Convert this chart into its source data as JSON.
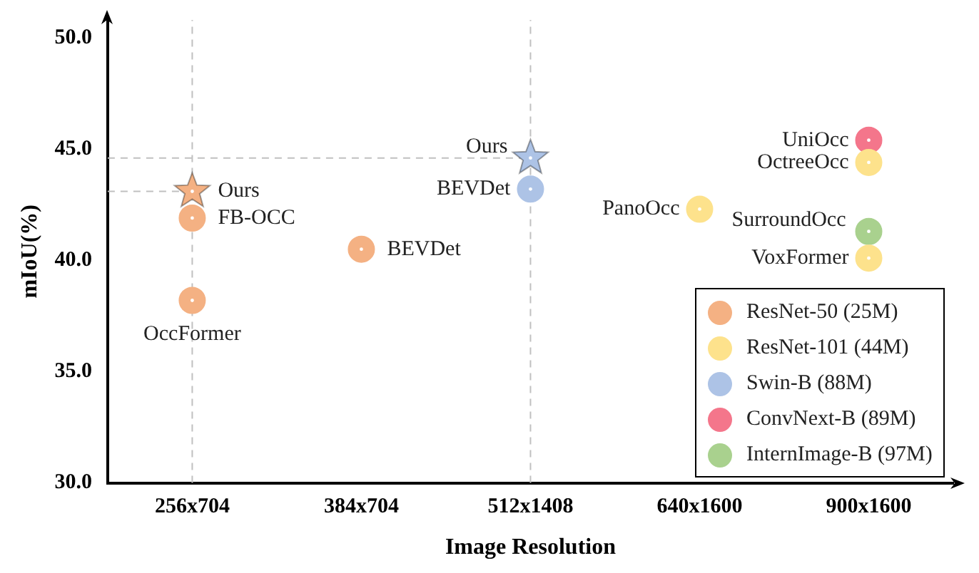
{
  "chart_data": {
    "type": "scatter",
    "xlabel": "Image Resolution",
    "ylabel": "mIoU(%)",
    "categories": [
      "256x704",
      "384x704",
      "512x1408",
      "640x1600",
      "900x1600"
    ],
    "ylim": [
      30,
      50.8
    ],
    "yticks": [
      {
        "value": 30,
        "label": "30.0"
      },
      {
        "value": 35,
        "label": "35.0"
      },
      {
        "value": 40,
        "label": "40.0"
      },
      {
        "value": 45,
        "label": "45.0"
      },
      {
        "value": 50,
        "label": "50.0"
      }
    ],
    "grid": false,
    "legend": "bottom right",
    "marker": "circle",
    "series": [
      {
        "name": "ResNet-50 (25M)",
        "color": "#f4b183",
        "x": [
          "256x704",
          "256x704",
          "384x704"
        ],
        "values": [
          41.9,
          38.2,
          40.5
        ]
      },
      {
        "name": "ResNet-101 (44M)",
        "color": "#fde28c",
        "x": [
          "640x1600",
          "900x1600",
          "900x1600"
        ],
        "values": [
          42.3,
          44.4,
          40.1
        ]
      },
      {
        "name": "Swin-B (88M)",
        "color": "#adc3e6",
        "x": [
          "512x1408"
        ],
        "values": [
          43.2
        ]
      },
      {
        "name": "ConvNext-B (89M)",
        "color": "#f4768b",
        "x": [
          "900x1600"
        ],
        "values": [
          45.4
        ]
      },
      {
        "name": "InternImage-B (97M)",
        "color": "#a9d18e",
        "x": [
          "900x1600"
        ],
        "values": [
          41.3
        ]
      },
      {
        "color": "#f4b183",
        "marker": "star",
        "x": [
          "256x704"
        ],
        "values": [
          43.1
        ]
      },
      {
        "color": "#adc3e6",
        "marker": "star",
        "x": [
          "512x1408"
        ],
        "values": [
          44.6
        ]
      }
    ],
    "ref_lines": [
      {
        "axis": "y",
        "value": 43.1,
        "color": "#c0c0c0",
        "line_style": "dashed"
      },
      {
        "axis": "y",
        "value": 44.6,
        "color": "#c0c0c0",
        "line_style": "dashed"
      },
      {
        "axis": "x",
        "value": "256x704",
        "color": "#c0c0c0",
        "line_style": "dashed"
      },
      {
        "axis": "x",
        "value": "512x1408",
        "color": "#c0c0c0",
        "line_style": "dashed"
      }
    ],
    "annotations": [
      {
        "text": "Ours",
        "x": "256x704",
        "y": 43.1
      },
      {
        "text": "FB-OCC",
        "x": "256x704",
        "y": 41.9
      },
      {
        "text": "OccFormer",
        "x": "256x704",
        "y": 38.2
      },
      {
        "text": "BEVDet",
        "x": "384x704",
        "y": 40.5
      },
      {
        "text": "Ours",
        "x": "512x1408",
        "y": 44.6
      },
      {
        "text": "BEVDet",
        "x": "512x1408",
        "y": 43.2
      },
      {
        "text": "PanoOcc",
        "x": "640x1600",
        "y": 42.3
      },
      {
        "text": "UniOcc",
        "x": "900x1600",
        "y": 45.4
      },
      {
        "text": "OctreeOcc",
        "x": "900x1600",
        "y": 44.4
      },
      {
        "text": "SurroundOcc",
        "x": "900x1600",
        "y": 41.3
      },
      {
        "text": "VoxFormer",
        "x": "900x1600",
        "y": 40.1
      }
    ]
  }
}
